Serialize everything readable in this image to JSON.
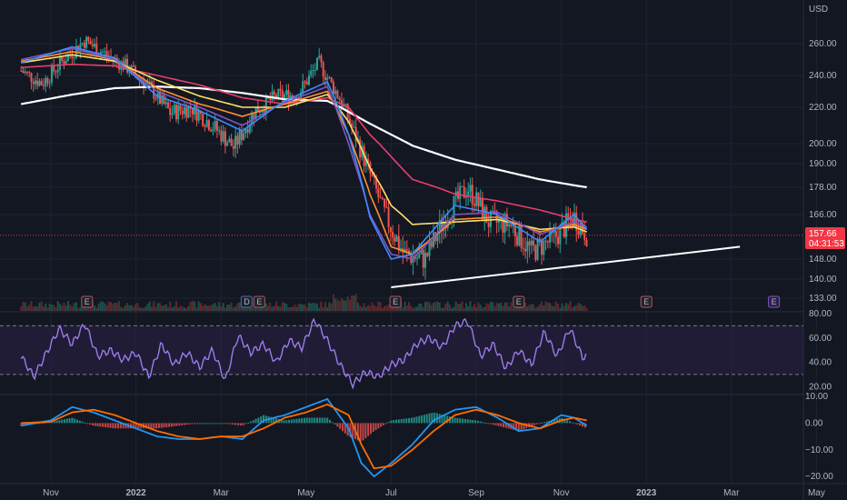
{
  "currency": "USD",
  "price_tag": {
    "value": "157.66",
    "countdown": "04:31:53",
    "color": "#f23645"
  },
  "events": [
    {
      "label": "E",
      "month": 0.85
    },
    {
      "label": "D",
      "month": 4.6
    },
    {
      "label": "E",
      "month": 4.9
    },
    {
      "label": "E",
      "month": 8.1
    },
    {
      "label": "E",
      "month": 11.0
    },
    {
      "label": "E",
      "month": 14.0
    },
    {
      "label": "E",
      "month": 17.0,
      "future": true
    }
  ],
  "chart_data": [
    {
      "type": "line",
      "name": "price-panel",
      "ylim": [
        130,
        270
      ],
      "y_ticks": [
        133,
        140,
        148,
        166,
        178,
        190,
        200,
        220,
        240,
        260
      ],
      "y_tick_labels": [
        "133.00",
        "140.00",
        "148.00",
        "166.00",
        "178.00",
        "190.00",
        "200.00",
        "220.00",
        "240.00",
        "260.00"
      ],
      "x_ticks": [
        "Nov",
        "2022",
        "Mar",
        "May",
        "Jul",
        "Sep",
        "Nov",
        "2023",
        "Mar",
        "May"
      ],
      "x_tick_bold": [
        false,
        true,
        false,
        false,
        false,
        false,
        false,
        true,
        false,
        false
      ],
      "x_tick_months": [
        0,
        2,
        4,
        6,
        8,
        10,
        12,
        14,
        16,
        18
      ],
      "candles": {
        "months": [
          -0.7,
          -0.2,
          0.3,
          0.8,
          1.3,
          1.8,
          2.3,
          2.8,
          3.3,
          3.8,
          4.3,
          4.8,
          5.3,
          5.8,
          6.3,
          6.8,
          7.3,
          7.8,
          8.3,
          8.8,
          9.3,
          9.8,
          10.3,
          10.8,
          11.3,
          11.8,
          12.3,
          12.6
        ],
        "close": [
          243,
          235,
          250,
          262,
          253,
          245,
          233,
          217,
          220,
          210,
          198,
          218,
          227,
          228,
          248,
          225,
          196,
          168,
          150,
          148,
          166,
          178,
          163,
          162,
          151,
          156,
          165,
          158
        ]
      },
      "moving_averages": [
        {
          "color": "#ffffff",
          "months": [
            -0.7,
            0.5,
            1.5,
            2.5,
            3.5,
            4.5,
            5.5,
            6.5,
            7.5,
            8.5,
            9.5,
            10.5,
            11.5,
            12.3,
            12.6
          ],
          "values": [
            222,
            228,
            232,
            233,
            232,
            229,
            225,
            224,
            211,
            199,
            192,
            187,
            182,
            179,
            178
          ]
        },
        {
          "color": "#e83e6c",
          "months": [
            -0.7,
            0.5,
            1.5,
            2.5,
            3.5,
            4.5,
            5.5,
            6.5,
            7.0,
            7.5,
            8.5,
            9.5,
            10.5,
            11.5,
            12.3,
            12.6
          ],
          "values": [
            245,
            247,
            246,
            240,
            234,
            226,
            222,
            226,
            220,
            205,
            182,
            175,
            172,
            168,
            164,
            163
          ]
        },
        {
          "color": "#ffe066",
          "months": [
            -0.7,
            0.5,
            1.5,
            2.5,
            3.5,
            4.5,
            5.5,
            6.5,
            7.0,
            7.5,
            8.0,
            8.5,
            9.5,
            10.5,
            11.5,
            12.3,
            12.6
          ],
          "values": [
            248,
            253,
            249,
            237,
            227,
            220,
            220,
            228,
            212,
            188,
            170,
            162,
            163,
            164,
            160,
            161,
            159
          ]
        },
        {
          "color": "#ff9030",
          "months": [
            -0.7,
            0.5,
            1.5,
            2.5,
            3.5,
            4.5,
            5.5,
            6.5,
            7.0,
            7.5,
            8.0,
            8.5,
            9.5,
            10.5,
            11.5,
            12.3,
            12.6
          ],
          "values": [
            249,
            255,
            250,
            232,
            222,
            215,
            222,
            230,
            205,
            175,
            153,
            150,
            164,
            165,
            159,
            162,
            160
          ]
        },
        {
          "color": "#7e57c2",
          "months": [
            -0.7,
            0.5,
            1.5,
            2.5,
            3.5,
            4.5,
            5.5,
            6.5,
            7.0,
            7.5,
            8.0,
            8.5,
            9.5,
            10.5,
            11.5,
            12.3,
            12.6
          ],
          "values": [
            250,
            257,
            250,
            230,
            220,
            210,
            223,
            233,
            200,
            166,
            150,
            148,
            166,
            167,
            158,
            163,
            161
          ]
        },
        {
          "color": "#3d8bfd",
          "months": [
            -0.7,
            0.5,
            1.5,
            2.5,
            3.5,
            4.5,
            5.5,
            6.5,
            7.0,
            7.5,
            8.0,
            8.5,
            9.5,
            10.5,
            11.5,
            12.3,
            12.6
          ],
          "values": [
            248,
            258,
            251,
            227,
            218,
            207,
            224,
            236,
            205,
            165,
            148,
            150,
            170,
            166,
            155,
            166,
            160
          ]
        }
      ],
      "trendline": {
        "months": [
          8.0,
          16.2
        ],
        "values": [
          137,
          153
        ]
      }
    },
    {
      "type": "line",
      "name": "rsi-panel",
      "ylim": [
        15,
        80
      ],
      "y_ticks": [
        20,
        40,
        60,
        80
      ],
      "y_tick_labels": [
        "20.00",
        "40.00",
        "60.00",
        "80.00"
      ],
      "band": [
        30,
        70
      ],
      "series": [
        {
          "color": "#9c7bea",
          "months": [
            -0.7,
            -0.4,
            -0.1,
            0.2,
            0.5,
            0.8,
            1.1,
            1.4,
            1.7,
            2.0,
            2.3,
            2.6,
            2.9,
            3.2,
            3.5,
            3.8,
            4.1,
            4.4,
            4.7,
            5.0,
            5.3,
            5.6,
            5.9,
            6.2,
            6.5,
            6.8,
            7.1,
            7.4,
            7.7,
            8.0,
            8.3,
            8.6,
            8.9,
            9.2,
            9.5,
            9.8,
            10.1,
            10.4,
            10.7,
            11.0,
            11.3,
            11.6,
            11.9,
            12.2,
            12.5,
            12.6
          ],
          "values": [
            45,
            28,
            48,
            68,
            55,
            72,
            45,
            50,
            42,
            48,
            28,
            55,
            38,
            48,
            36,
            50,
            25,
            62,
            48,
            55,
            40,
            58,
            52,
            75,
            58,
            38,
            22,
            32,
            28,
            38,
            42,
            55,
            60,
            52,
            70,
            74,
            45,
            55,
            35,
            50,
            38,
            65,
            45,
            68,
            44,
            46
          ]
        }
      ]
    },
    {
      "type": "line",
      "name": "macd-panel",
      "ylim": [
        -22,
        10
      ],
      "y_ticks": [
        10,
        0,
        -10,
        -20
      ],
      "y_tick_labels": [
        "10.00",
        "0.00",
        "−10.00",
        "−20.00"
      ],
      "series": [
        {
          "color": "#2196f3",
          "months": [
            -0.7,
            0.0,
            0.5,
            1.0,
            1.5,
            2.0,
            2.5,
            3.0,
            3.5,
            4.0,
            4.5,
            5.0,
            5.5,
            6.0,
            6.5,
            7.0,
            7.3,
            7.6,
            8.0,
            8.5,
            9.0,
            9.5,
            10.0,
            10.5,
            11.0,
            11.5,
            12.0,
            12.3,
            12.6
          ],
          "values": [
            -1,
            1,
            6,
            4,
            1,
            -2,
            -5,
            -6,
            -6,
            -5,
            -6,
            1,
            3,
            6,
            9,
            -2,
            -15,
            -20,
            -15,
            -8,
            1,
            5,
            6,
            2,
            -3,
            -2,
            3,
            2,
            -1
          ]
        },
        {
          "color": "#ff6d00",
          "months": [
            -0.7,
            0.0,
            0.5,
            1.0,
            1.5,
            2.0,
            2.5,
            3.0,
            3.5,
            4.0,
            4.5,
            5.0,
            5.5,
            6.0,
            6.5,
            7.0,
            7.3,
            7.6,
            8.0,
            8.5,
            9.0,
            9.5,
            10.0,
            10.5,
            11.0,
            11.5,
            12.0,
            12.3,
            12.6
          ],
          "values": [
            0,
            0.5,
            4,
            5,
            3,
            0,
            -3,
            -5,
            -6,
            -5,
            -5,
            -2,
            2,
            4,
            7,
            3,
            -8,
            -17,
            -16,
            -10,
            -3,
            3,
            5,
            3,
            0,
            -2,
            1,
            2,
            1
          ]
        }
      ]
    }
  ]
}
